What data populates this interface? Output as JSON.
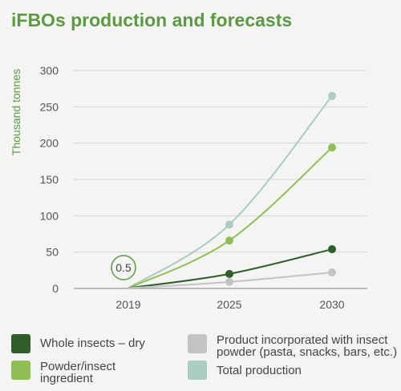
{
  "title": "iFBOs production and forecasts",
  "chart_data": {
    "type": "line",
    "title": "iFBOs production and forecasts",
    "ylabel": "Thousand tonnes",
    "xlabel": "",
    "x": [
      "2019",
      "2025",
      "2030"
    ],
    "ylim": [
      0,
      300
    ],
    "yticks": [
      0,
      50,
      100,
      150,
      200,
      250,
      300
    ],
    "grid": true,
    "annotation": "0.5",
    "series": [
      {
        "name": "Total production",
        "color": "#a9cdbf",
        "values": [
          0.5,
          88,
          265
        ]
      },
      {
        "name": "Powder/insect ingredient",
        "color": "#8fbf54",
        "values": [
          0.5,
          66,
          194
        ]
      },
      {
        "name": "Whole insects – dry",
        "color": "#2e5e2a",
        "values": [
          0.5,
          20,
          54
        ]
      },
      {
        "name": "Product incorporated with insect powder (pasta, snacks, bars, etc.)",
        "color": "#c3c3c3",
        "values": [
          0.5,
          9,
          22
        ]
      }
    ]
  },
  "legend": [
    {
      "label": "Whole insects – dry",
      "color": "#2e5e2a"
    },
    {
      "label": "Product incorporated with insect powder (pasta, snacks, bars, etc.)",
      "color": "#c3c3c3"
    },
    {
      "label": "Powder/insect ingredient",
      "color": "#8fbf54"
    },
    {
      "label": "Total production",
      "color": "#a9cdbf"
    }
  ]
}
